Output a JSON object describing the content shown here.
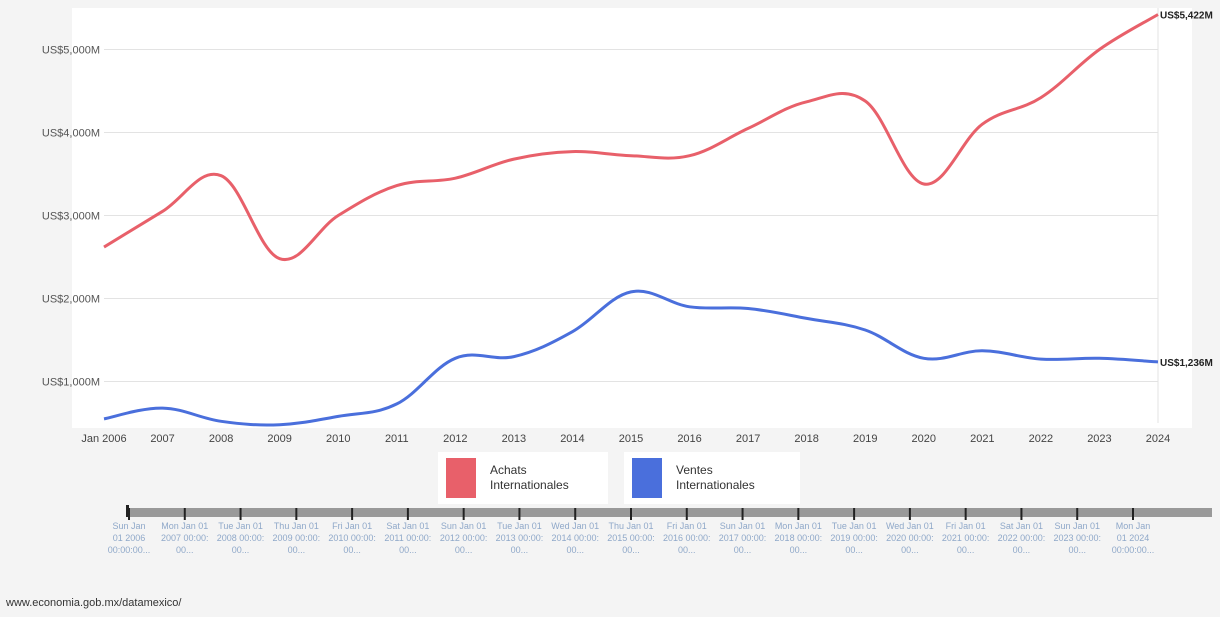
{
  "chart_data": {
    "type": "line",
    "x": [
      "Jan 2006",
      "2007",
      "2008",
      "2009",
      "2010",
      "2011",
      "2012",
      "2013",
      "2014",
      "2015",
      "2016",
      "2017",
      "2018",
      "2019",
      "2020",
      "2021",
      "2022",
      "2023",
      "2024"
    ],
    "yticks": [
      "US$1,000M",
      "US$2,000M",
      "US$3,000M",
      "US$4,000M",
      "US$5,000M"
    ],
    "ytick_values": [
      1000,
      2000,
      3000,
      4000,
      5000
    ],
    "ylim": [
      500,
      5500
    ],
    "grid": true,
    "series": [
      {
        "name": "Achats Internationales",
        "color": "#e8606a",
        "values": [
          2620,
          3050,
          3480,
          2480,
          3000,
          3360,
          3450,
          3680,
          3770,
          3720,
          3720,
          4050,
          4370,
          4380,
          3380,
          4100,
          4420,
          5000,
          5422
        ],
        "end_label": "US$5,422M"
      },
      {
        "name": "Ventes Internationales",
        "color": "#4a6fdc",
        "values": [
          550,
          680,
          520,
          480,
          580,
          730,
          1280,
          1300,
          1600,
          2080,
          1900,
          1880,
          1760,
          1620,
          1280,
          1370,
          1270,
          1280,
          1236
        ],
        "end_label": "US$1,236M"
      }
    ],
    "legend": {
      "position": "bottom",
      "items": [
        {
          "label_line1": "Achats",
          "label_line2": "Internationales"
        },
        {
          "label_line1": "Ventes",
          "label_line2": "Internationales"
        }
      ]
    }
  },
  "slider": {
    "labels": [
      "Sun Jan\n01 2006\n00:00:00...",
      "Mon Jan 01\n2007 00:00:\n00...",
      "Tue Jan 01\n2008 00:00:\n00...",
      "Thu Jan 01\n2009 00:00:\n00...",
      "Fri Jan 01\n2010 00:00:\n00...",
      "Sat Jan 01\n2011 00:00:\n00...",
      "Sun Jan 01\n2012 00:00:\n00...",
      "Tue Jan 01\n2013 00:00:\n00...",
      "Wed Jan 01\n2014 00:00:\n00...",
      "Thu Jan 01\n2015 00:00:\n00...",
      "Fri Jan 01\n2016 00:00:\n00...",
      "Sun Jan 01\n2017 00:00:\n00...",
      "Mon Jan 01\n2018 00:00:\n00...",
      "Tue Jan 01\n2019 00:00:\n00...",
      "Wed Jan 01\n2020 00:00:\n00...",
      "Fri Jan 01\n2021 00:00:\n00...",
      "Sat Jan 01\n2022 00:00:\n00...",
      "Sun Jan 01\n2023 00:00:\n00...",
      "Mon Jan\n01 2024\n00:00:00..."
    ]
  },
  "source": "www.economia.gob.mx/datamexico/"
}
